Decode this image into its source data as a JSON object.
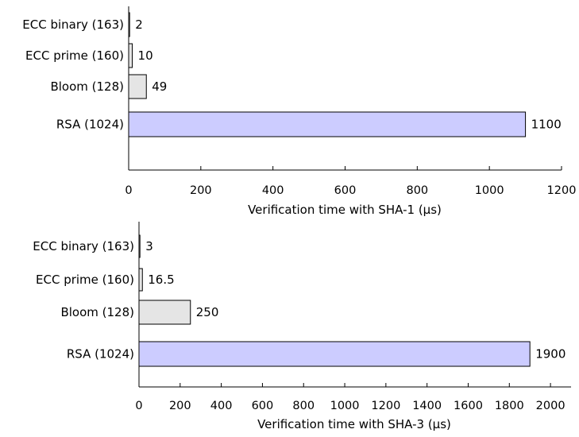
{
  "chart_data": [
    {
      "type": "bar",
      "orientation": "horizontal",
      "categories": [
        "ECC binary (163)",
        "ECC prime (160)",
        "Bloom (128)",
        "RSA (1024)"
      ],
      "values": [
        2,
        10,
        49,
        1100
      ],
      "value_labels": [
        "2",
        "10",
        "49",
        "1100"
      ],
      "colors": [
        "#e5e5e5",
        "#e5e5e5",
        "#e5e5e5",
        "#ccccff"
      ],
      "xlabel": "Verification time with SHA-1 (μs)",
      "xlim": [
        0,
        1200
      ],
      "xticks": [
        0,
        200,
        400,
        600,
        800,
        1000,
        1200
      ],
      "grid": false
    },
    {
      "type": "bar",
      "orientation": "horizontal",
      "categories": [
        "ECC binary (163)",
        "ECC prime (160)",
        "Bloom (128)",
        "RSA (1024)"
      ],
      "values": [
        3,
        16.5,
        250,
        1900
      ],
      "value_labels": [
        "3",
        "16.5",
        "250",
        "1900"
      ],
      "colors": [
        "#e5e5e5",
        "#e5e5e5",
        "#e5e5e5",
        "#ccccff"
      ],
      "xlabel": "Verification time with SHA-3 (μs)",
      "xlim": [
        0,
        2100
      ],
      "xticks": [
        0,
        200,
        400,
        600,
        800,
        1000,
        1200,
        1400,
        1600,
        1800,
        2000
      ],
      "grid": false
    }
  ]
}
